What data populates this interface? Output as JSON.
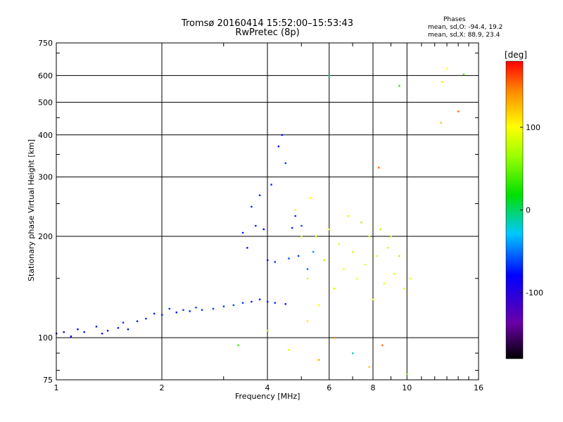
{
  "header": {
    "title_line1": "Tromsø 20160414 15:52:00–15:53:43",
    "title_line2": "RwPretec (8p)"
  },
  "phases": {
    "title": "Phases",
    "line_o": "mean, sd,O: -94.4, 19.2",
    "line_x": "mean, sd,X:  88.9, 23.4"
  },
  "colorbar": {
    "unit_label": "[deg]",
    "tick_labels": [
      "100",
      "0",
      "-100"
    ],
    "ticks": [
      100,
      0,
      -100
    ],
    "range": [
      -180,
      180
    ]
  },
  "chart_data": {
    "type": "scatter",
    "title": "Tromsø 20160414 15:52:00–15:53:43",
    "subtitle": "RwPretec (8p)",
    "xlabel": "Frequency [MHz]",
    "ylabel": "Stationary phase Virtual Height [km]",
    "x_scale": "log",
    "y_scale": "log",
    "xlim": [
      1,
      16
    ],
    "ylim": [
      75,
      750
    ],
    "x_ticks": [
      1,
      2,
      4,
      6,
      8,
      10,
      16
    ],
    "x_tick_labels": [
      "1",
      "2",
      "4",
      "6",
      "8",
      "10",
      "16"
    ],
    "y_ticks": [
      75,
      100,
      200,
      300,
      400,
      500,
      600,
      750
    ],
    "y_tick_labels": [
      "75",
      "100",
      "200",
      "300",
      "400",
      "500",
      "600",
      "750"
    ],
    "grid": true,
    "color_scale": "phase in degrees, -180 (black) to 180 (red)",
    "series": [
      {
        "points": [
          [
            1.0,
            103,
            -110
          ],
          [
            1.05,
            104,
            -105
          ],
          [
            1.1,
            101,
            -108
          ],
          [
            1.15,
            106,
            -112
          ],
          [
            1.2,
            104,
            -100
          ],
          [
            1.3,
            108,
            -104
          ],
          [
            1.35,
            103,
            -110
          ],
          [
            1.4,
            105,
            -106
          ],
          [
            1.5,
            107,
            -102
          ],
          [
            1.55,
            111,
            -98
          ],
          [
            1.6,
            106,
            -105
          ],
          [
            1.7,
            112,
            -100
          ],
          [
            1.8,
            114,
            -96
          ],
          [
            1.9,
            118,
            -102
          ],
          [
            2.0,
            117,
            -98
          ],
          [
            2.1,
            122,
            -95
          ],
          [
            2.2,
            119,
            -104
          ],
          [
            2.3,
            121,
            -92
          ],
          [
            2.4,
            120,
            -100
          ],
          [
            2.5,
            123,
            -90
          ],
          [
            2.6,
            121,
            -96
          ],
          [
            2.8,
            122,
            -88
          ],
          [
            3.0,
            124,
            -94
          ],
          [
            3.2,
            125,
            -86
          ],
          [
            3.4,
            127,
            -92
          ],
          [
            3.6,
            128,
            -98
          ],
          [
            3.8,
            130,
            -100
          ],
          [
            4.0,
            128,
            -102
          ],
          [
            4.2,
            127,
            -96
          ],
          [
            4.5,
            126,
            -108
          ]
        ]
      },
      {
        "points": [
          [
            3.4,
            205,
            -100
          ],
          [
            3.5,
            185,
            -104
          ],
          [
            3.6,
            245,
            -96
          ],
          [
            3.7,
            215,
            -102
          ],
          [
            3.8,
            265,
            -98
          ],
          [
            3.9,
            210,
            -110
          ],
          [
            4.0,
            170,
            -106
          ],
          [
            4.1,
            285,
            -100
          ],
          [
            4.2,
            168,
            -96
          ],
          [
            4.3,
            370,
            -110
          ],
          [
            4.4,
            400,
            -105
          ],
          [
            4.5,
            330,
            -92
          ],
          [
            4.6,
            172,
            -88
          ],
          [
            4.7,
            212,
            -98
          ],
          [
            4.8,
            230,
            -100
          ],
          [
            4.9,
            175,
            -90
          ],
          [
            5.0,
            215,
            -84
          ],
          [
            5.2,
            160,
            -70
          ],
          [
            5.4,
            180,
            -60
          ]
        ]
      },
      {
        "points": [
          [
            4.8,
            240,
            90
          ],
          [
            5.0,
            200,
            80
          ],
          [
            5.2,
            150,
            70
          ],
          [
            5.3,
            260,
            100
          ],
          [
            5.5,
            200,
            85
          ],
          [
            5.6,
            125,
            95
          ],
          [
            5.8,
            170,
            60
          ],
          [
            6.0,
            210,
            88
          ],
          [
            6.2,
            140,
            75
          ],
          [
            6.4,
            190,
            90
          ],
          [
            6.6,
            160,
            100
          ],
          [
            6.8,
            230,
            82
          ],
          [
            7.0,
            180,
            70
          ],
          [
            7.2,
            150,
            95
          ],
          [
            7.4,
            220,
            60
          ],
          [
            7.6,
            165,
            90
          ],
          [
            7.8,
            200,
            75
          ],
          [
            8.0,
            130,
            100
          ],
          [
            8.2,
            175,
            85
          ],
          [
            8.4,
            210,
            65
          ],
          [
            8.6,
            145,
            92
          ],
          [
            8.8,
            185,
            80
          ],
          [
            9.0,
            200,
            70
          ],
          [
            9.2,
            155,
            95
          ],
          [
            9.5,
            175,
            60
          ],
          [
            9.8,
            140,
            85
          ],
          [
            10.2,
            150,
            90
          ]
        ]
      },
      {
        "points": [
          [
            3.3,
            95,
            20
          ],
          [
            4.0,
            105,
            60
          ],
          [
            4.6,
            92,
            90
          ],
          [
            5.2,
            112,
            110
          ],
          [
            5.6,
            86,
            130
          ],
          [
            6.2,
            100,
            140
          ],
          [
            7.0,
            90,
            -30
          ],
          [
            7.8,
            82,
            120
          ],
          [
            8.5,
            95,
            150
          ],
          [
            10.0,
            78,
            40
          ],
          [
            12.5,
            435,
            120
          ],
          [
            12.6,
            575,
            110
          ],
          [
            13.0,
            630,
            100
          ],
          [
            14.0,
            470,
            150
          ],
          [
            14.5,
            605,
            20
          ],
          [
            9.5,
            560,
            10
          ],
          [
            6.0,
            600,
            -20
          ],
          [
            8.3,
            320,
            150
          ]
        ]
      }
    ]
  }
}
